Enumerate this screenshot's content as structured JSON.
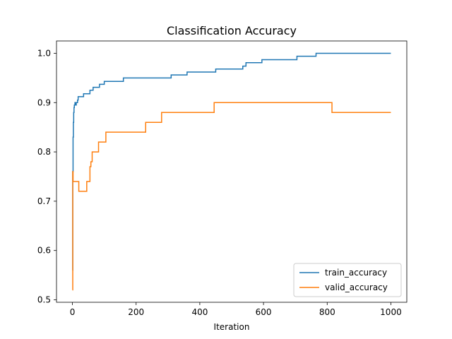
{
  "chart_data": {
    "type": "line",
    "title": "Classification Accuracy",
    "xlabel": "Iteration",
    "ylabel": "",
    "xlim": [
      -50,
      1050
    ],
    "ylim": [
      0.495,
      1.025
    ],
    "xticks": [
      0,
      200,
      400,
      600,
      800,
      1000
    ],
    "xtick_labels": [
      "0",
      "200",
      "400",
      "600",
      "800",
      "1000"
    ],
    "yticks": [
      0.5,
      0.6,
      0.7,
      0.8,
      0.9,
      1.0
    ],
    "ytick_labels": [
      "0.5",
      "0.6",
      "0.7",
      "0.8",
      "0.9",
      "1.0"
    ],
    "grid": false,
    "legend_position": "lower right",
    "series": [
      {
        "name": "train_accuracy",
        "color": "#1f77b4",
        "step": true,
        "x": [
          0,
          1,
          2,
          3,
          4,
          5,
          6,
          8,
          10,
          12,
          14,
          16,
          18,
          22,
          35,
          55,
          65,
          85,
          100,
          160,
          310,
          360,
          450,
          535,
          545,
          595,
          705,
          765,
          1000
        ],
        "y": [
          0.56,
          0.76,
          0.83,
          0.86,
          0.88,
          0.89,
          0.895,
          0.9,
          0.895,
          0.9,
          0.9,
          0.905,
          0.912,
          0.912,
          0.918,
          0.925,
          0.931,
          0.937,
          0.943,
          0.95,
          0.956,
          0.962,
          0.968,
          0.974,
          0.981,
          0.987,
          0.994,
          1.0,
          1.0
        ]
      },
      {
        "name": "valid_accuracy",
        "color": "#ff7f0e",
        "step": true,
        "x": [
          0,
          1,
          2,
          3,
          4,
          20,
          45,
          55,
          58,
          62,
          82,
          105,
          230,
          280,
          445,
          815,
          1000
        ],
        "y": [
          0.52,
          0.76,
          0.74,
          0.74,
          0.74,
          0.72,
          0.74,
          0.77,
          0.78,
          0.8,
          0.82,
          0.84,
          0.86,
          0.88,
          0.9,
          0.88,
          0.88
        ]
      }
    ]
  }
}
